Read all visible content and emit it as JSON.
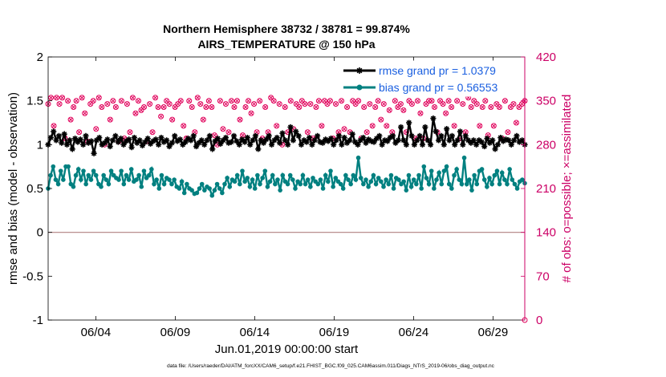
{
  "chart_data": {
    "type": "line",
    "title": "Northern Hemisphere 38732 / 38781 = 99.874%",
    "subtitle": "AIRS_TEMPERATURE @ 150 hPa",
    "xlabel": "Jun.01,2019 00:00:00 start",
    "ylabel": "rmse and bias (model - observation)",
    "y2label": "# of obs: o=possible; ×=assimilated",
    "x_tick_labels": [
      "06/04",
      "06/09",
      "06/14",
      "06/19",
      "06/24",
      "06/29"
    ],
    "x_tick_days": [
      4,
      9,
      14,
      19,
      24,
      29
    ],
    "xlim_days": [
      1.0,
      31.0
    ],
    "ylim": [
      -1,
      2
    ],
    "y_ticks": [
      "2",
      "1.5",
      "1",
      "0.5",
      "0",
      "-0.5",
      "-1"
    ],
    "y2lim": [
      0,
      420
    ],
    "y2_ticks": [
      "420",
      "350",
      "280",
      "210",
      "140",
      "70",
      "0"
    ],
    "grid": false,
    "legend_position": "top-right",
    "zero_line_y": 0,
    "colors": {
      "rmse": "#000000",
      "bias": "#008080",
      "obs": "#e0005a",
      "legend_text": "#1a5fe0",
      "right_axis": "#cc0066",
      "zero_line": "#b08080"
    },
    "series": [
      {
        "name": "rmse grand pr = 1.0379",
        "marker": "asterisk",
        "axis": "left",
        "values": [
          1.0,
          1.08,
          1.15,
          1.05,
          1.1,
          1.02,
          1.12,
          1.0,
          1.05,
          0.95,
          1.07,
          1.03,
          1.06,
          1.0,
          1.1,
          1.02,
          1.04,
          0.9,
          1.05,
          1.08,
          1.0,
          1.02,
          1.06,
          0.98,
          1.05,
          1.1,
          1.03,
          1.07,
          1.0,
          1.04,
          1.06,
          0.97,
          1.08,
          1.02,
          1.05,
          0.99,
          1.03,
          1.07,
          1.01,
          1.04,
          1.06,
          1.0,
          1.08,
          1.03,
          1.05,
          0.98,
          1.02,
          1.1,
          1.04,
          1.06,
          1.0,
          1.03,
          1.07,
          1.05,
          1.1,
          0.98,
          1.02,
          1.05,
          1.0,
          1.05,
          1.1,
          0.95,
          1.04,
          1.07,
          1.01,
          1.05,
          1.08,
          1.02,
          1.03,
          1.1,
          1.04,
          1.0,
          1.06,
          1.03,
          1.08,
          1.0,
          1.05,
          1.1,
          0.95,
          1.05,
          1.02,
          1.06,
          1.1,
          1.0,
          1.05,
          1.08,
          1.02,
          1.13,
          1.05,
          1.0,
          1.2,
          1.05,
          1.15,
          1.1,
          1.0,
          1.05,
          1.03,
          1.08,
          1.0,
          1.05,
          1.1,
          1.03,
          1.02,
          1.06,
          1.04,
          1.07,
          1.0,
          1.05,
          1.1,
          1.0,
          1.08,
          1.02,
          1.05,
          1.12,
          1.03,
          1.0,
          1.05,
          1.08,
          1.02,
          1.06,
          1.04,
          1.03,
          1.07,
          1.1,
          1.0,
          1.05,
          1.04,
          1.08,
          1.1,
          1.02,
          1.05,
          1.2,
          1.05,
          1.0,
          1.25,
          1.1,
          1.0,
          1.05,
          1.1,
          1.0,
          1.2,
          1.05,
          1.0,
          1.3,
          1.15,
          1.05,
          1.1,
          1.0,
          1.18,
          1.05,
          1.1,
          1.0,
          1.05,
          1.15,
          1.0,
          1.1,
          1.05,
          1.02,
          1.05,
          1.0,
          1.05,
          1.03,
          0.98,
          1.07,
          1.02,
          1.05,
          0.95,
          1.0,
          1.08,
          1.04,
          1.06,
          1.05,
          1.0,
          1.05,
          1.1,
          1.03,
          1.05,
          1.0
        ]
      },
      {
        "name": "bias grand pr = 0.56553",
        "marker": "circle",
        "axis": "left",
        "values": [
          0.5,
          0.65,
          0.75,
          0.6,
          0.55,
          0.7,
          0.6,
          0.75,
          0.75,
          0.55,
          0.52,
          0.65,
          0.72,
          0.6,
          0.7,
          0.55,
          0.65,
          0.6,
          0.7,
          0.65,
          0.55,
          0.52,
          0.65,
          0.6,
          0.55,
          0.7,
          0.65,
          0.62,
          0.6,
          0.7,
          0.55,
          0.65,
          0.6,
          0.72,
          0.58,
          0.6,
          0.65,
          0.52,
          0.7,
          0.62,
          0.65,
          0.72,
          0.55,
          0.6,
          0.5,
          0.65,
          0.55,
          0.62,
          0.6,
          0.55,
          0.6,
          0.52,
          0.5,
          0.58,
          0.45,
          0.55,
          0.5,
          0.48,
          0.44,
          0.45,
          0.5,
          0.55,
          0.48,
          0.52,
          0.5,
          0.42,
          0.48,
          0.55,
          0.5,
          0.45,
          0.55,
          0.62,
          0.52,
          0.6,
          0.58,
          0.65,
          0.55,
          0.7,
          0.58,
          0.62,
          0.52,
          0.6,
          0.5,
          0.65,
          0.55,
          0.62,
          0.7,
          0.52,
          0.58,
          0.65,
          0.55,
          0.6,
          0.48,
          0.65,
          0.58,
          0.55,
          0.65,
          0.6,
          0.5,
          0.58,
          0.55,
          0.65,
          0.55,
          0.6,
          0.52,
          0.62,
          0.58,
          0.55,
          0.6,
          0.5,
          0.65,
          0.58,
          0.7,
          0.52,
          0.62,
          0.58,
          0.55,
          0.5,
          0.65,
          0.6,
          0.55,
          0.65,
          0.6,
          0.85,
          0.62,
          0.55,
          0.6,
          0.52,
          0.58,
          0.65,
          0.55,
          0.62,
          0.58,
          0.52,
          0.6,
          0.55,
          0.65,
          0.5,
          0.62,
          0.6,
          0.55,
          0.58,
          0.48,
          0.65,
          0.52,
          0.6,
          0.55,
          0.65,
          0.5,
          0.75,
          0.62,
          0.55,
          0.7,
          0.5,
          0.6,
          0.68,
          0.55,
          0.7,
          0.75,
          0.55,
          0.5,
          0.65,
          0.72,
          0.6,
          0.55,
          0.85,
          0.55,
          0.6,
          0.48,
          0.65,
          0.55,
          0.7,
          0.72,
          0.6,
          0.52,
          0.62,
          0.55,
          0.65,
          0.7,
          0.55,
          0.68,
          0.6,
          0.55,
          0.72,
          0.6,
          0.55,
          0.5,
          0.58,
          0.6,
          0.56
        ]
      },
      {
        "name": "obs possible",
        "marker": "circle-open",
        "axis": "right",
        "values": [
          345,
          355,
          310,
          355,
          345,
          355,
          290,
          350,
          320,
          340,
          350,
          300,
          355,
          330,
          285,
          345,
          350,
          305,
          355,
          340,
          280,
          345,
          320,
          350,
          340,
          285,
          350,
          290,
          345,
          300,
          355,
          330,
          350,
          335,
          340,
          285,
          345,
          300,
          355,
          340,
          325,
          340,
          350,
          345,
          320,
          340,
          345,
          350,
          310,
          290,
          350,
          340,
          300,
          355,
          345,
          320,
          340,
          350,
          340,
          295,
          280,
          350,
          305,
          345,
          300,
          350,
          340,
          350,
          320,
          295,
          340,
          350,
          330,
          345,
          300,
          350,
          290,
          340,
          300,
          355,
          350,
          310,
          345,
          280,
          340,
          300,
          350,
          305,
          345,
          340,
          350,
          345,
          300,
          345,
          290,
          340,
          350,
          310,
          350,
          345,
          350,
          290,
          345,
          300,
          350,
          305,
          340,
          300,
          350,
          345,
          350,
          290,
          340,
          300,
          345,
          310,
          340,
          350,
          320,
          345,
          310,
          335,
          300,
          350,
          340,
          345,
          335,
          300,
          350,
          345,
          290,
          350,
          330,
          290,
          345,
          350,
          350,
          340,
          300,
          350,
          345,
          330,
          350,
          340,
          310,
          350,
          290,
          345,
          300,
          355,
          340,
          350,
          345,
          310,
          340,
          350,
          295,
          340,
          310,
          345,
          340,
          290,
          350,
          300,
          340,
          345,
          315,
          340,
          345,
          350
        ]
      },
      {
        "name": "obs assimilated",
        "marker": "cross",
        "axis": "right",
        "values": [
          345,
          355,
          310,
          355,
          345,
          355,
          290,
          350,
          320,
          340,
          350,
          300,
          355,
          330,
          285,
          345,
          350,
          305,
          355,
          340,
          280,
          345,
          320,
          350,
          340,
          285,
          350,
          290,
          345,
          300,
          355,
          330,
          350,
          335,
          340,
          285,
          345,
          300,
          355,
          340,
          325,
          340,
          350,
          345,
          320,
          340,
          345,
          350,
          310,
          290,
          350,
          340,
          300,
          355,
          345,
          320,
          340,
          350,
          340,
          295,
          280,
          350,
          305,
          345,
          300,
          350,
          340,
          350,
          320,
          295,
          340,
          350,
          330,
          345,
          300,
          350,
          290,
          340,
          300,
          355,
          350,
          310,
          345,
          280,
          340,
          300,
          350,
          305,
          345,
          340,
          350,
          345,
          300,
          345,
          290,
          340,
          350,
          310,
          350,
          345,
          350,
          290,
          345,
          300,
          350,
          305,
          340,
          300,
          350,
          345,
          350,
          290,
          340,
          300,
          345,
          310,
          340,
          350,
          320,
          345,
          310,
          335,
          300,
          350,
          340,
          345,
          335,
          300,
          350,
          345,
          290,
          350,
          330,
          290,
          345,
          350,
          350,
          340,
          300,
          350,
          345,
          330,
          350,
          340,
          310,
          350,
          290,
          345,
          300,
          355,
          340,
          350,
          345,
          310,
          340,
          350,
          295,
          340,
          310,
          345,
          340,
          290,
          350,
          300,
          340,
          345,
          315,
          340,
          345,
          350
        ]
      }
    ],
    "footnote": "data file: /Users/raeder/DAI/ATM_forcXX/CAM6_setup/f.e21.FHIST_BGC.f09_025.CAM6assim.011/Diags_NTrS_2019-06/obs_diag_output.nc"
  }
}
